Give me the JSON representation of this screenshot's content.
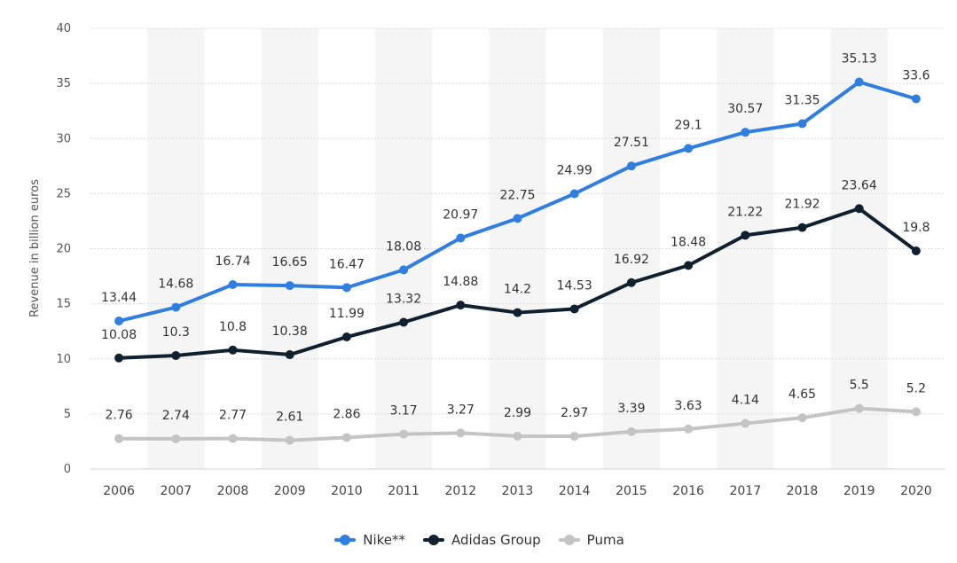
{
  "chart_data": {
    "type": "line",
    "xlabel": "",
    "ylabel": "Revenue in billion euros",
    "ylim": [
      0,
      40
    ],
    "yticks": [
      0,
      5,
      10,
      15,
      20,
      25,
      30,
      35,
      40
    ],
    "grid": true,
    "legend_position": "bottom-center",
    "categories": [
      "2006",
      "2007",
      "2008",
      "2009",
      "2010",
      "2011",
      "2012",
      "2013",
      "2014",
      "2015",
      "2016",
      "2017",
      "2018",
      "2019",
      "2020"
    ],
    "series": [
      {
        "name": "Nike**",
        "color": "#2f7ee0",
        "values": [
          13.44,
          14.68,
          16.74,
          16.65,
          16.47,
          18.08,
          20.97,
          22.75,
          24.99,
          27.51,
          29.1,
          30.57,
          31.35,
          35.13,
          33.6
        ]
      },
      {
        "name": "Adidas Group",
        "color": "#10202f",
        "values": [
          10.08,
          10.3,
          10.8,
          10.38,
          11.99,
          13.32,
          14.88,
          14.2,
          14.53,
          16.92,
          18.48,
          21.22,
          21.92,
          23.64,
          19.8
        ]
      },
      {
        "name": "Puma",
        "color": "#c4c4c4",
        "values": [
          2.76,
          2.74,
          2.77,
          2.61,
          2.86,
          3.17,
          3.27,
          2.99,
          2.97,
          3.39,
          3.63,
          4.14,
          4.65,
          5.5,
          5.2
        ]
      }
    ]
  }
}
